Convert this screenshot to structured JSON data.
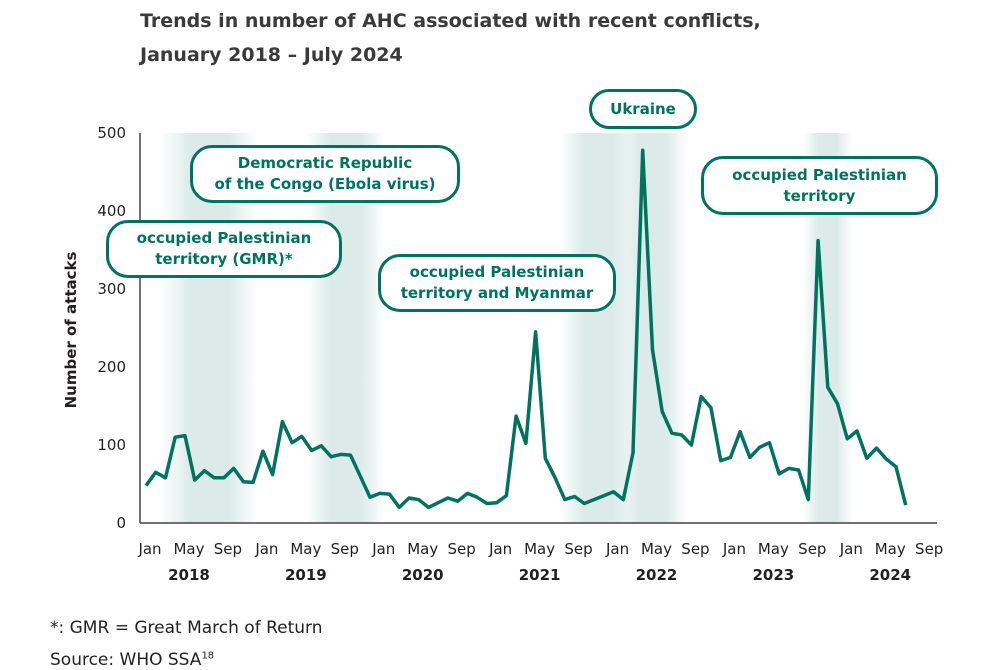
{
  "chart_data": {
    "type": "line",
    "title_line1": "Trends in number of AHC associated with recent conflicts,",
    "title_line2": "January 2018 – July 2024",
    "ylabel": "Number of attacks",
    "ylim": [
      0,
      500
    ],
    "yticks": [
      "0",
      "100",
      "200",
      "300",
      "400",
      "500"
    ],
    "x_month_labels": [
      "Jan",
      "May",
      "Sep"
    ],
    "years": [
      "2018",
      "2019",
      "2020",
      "2021",
      "2022",
      "2023",
      "2024"
    ],
    "start": "2018-01",
    "end_axis": "2024-09",
    "series": [
      {
        "name": "AHC",
        "color": "#00735e",
        "values": [
          48,
          65,
          58,
          110,
          112,
          55,
          67,
          58,
          58,
          70,
          53,
          52,
          92,
          62,
          130,
          103,
          111,
          93,
          99,
          85,
          88,
          87,
          60,
          33,
          38,
          37,
          20,
          32,
          30,
          20,
          26,
          32,
          28,
          38,
          33,
          25,
          26,
          35,
          137,
          102,
          245,
          83,
          58,
          30,
          34,
          25,
          30,
          35,
          40,
          30,
          90,
          478,
          222,
          143,
          115,
          113,
          100,
          162,
          148,
          80,
          84,
          117,
          84,
          97,
          103,
          63,
          70,
          68,
          30,
          362,
          174,
          153,
          108,
          118,
          83,
          96,
          82,
          72,
          23
        ]
      }
    ],
    "highlight_bands_month_index": [
      [
        2,
        11
      ],
      [
        17,
        24
      ],
      [
        43,
        50
      ],
      [
        49,
        55
      ],
      [
        68,
        72
      ]
    ],
    "annotations": [
      "occupied Palestinian territory (GMR)*",
      "Democratic Republic of the Congo (Ebola virus)",
      "occupied Palestinian territory and Myanmar",
      "Ukraine",
      "occupied Palestinian territory"
    ]
  },
  "callouts": {
    "gmr_1": "occupied Palestinian",
    "gmr_2": "territory (GMR)*",
    "drc_1": "Democratic Republic",
    "drc_2": "of the Congo (Ebola virus)",
    "opt_mm_1": "occupied Palestinian",
    "opt_mm_2": "territory and Myanmar",
    "ukraine": "Ukraine",
    "opt_1": "occupied Palestinian",
    "opt_2": "territory"
  },
  "footnotes": {
    "gmr": "*: GMR = Great March of Return",
    "source": "Source: WHO SSA",
    "source_ref": "18"
  }
}
